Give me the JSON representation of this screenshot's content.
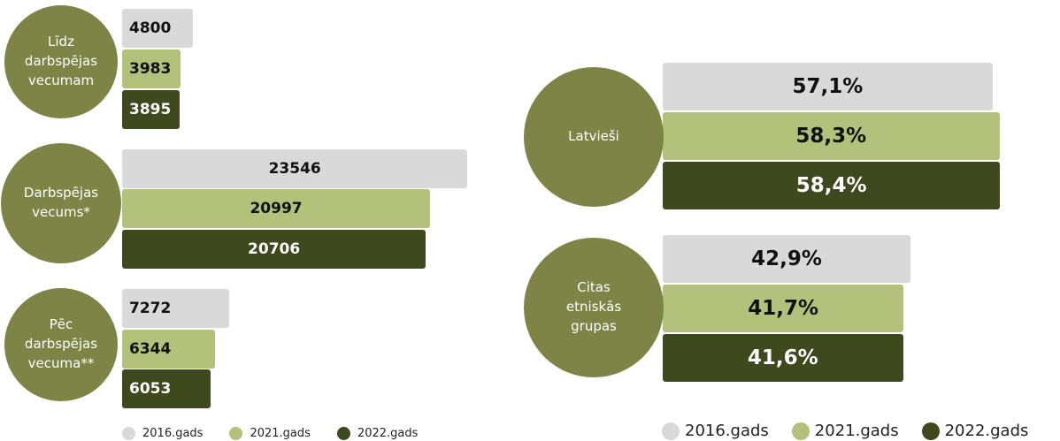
{
  "colors": {
    "circle": "#7d8445",
    "year_2016": "#d9d9d9",
    "year_2021": "#b3c17a",
    "year_2022": "#3e4a1d",
    "text_light_bar": "#111111",
    "text_dark_bar": "#ffffff"
  },
  "chart_data": [
    {
      "type": "bar",
      "orientation": "horizontal",
      "categories": [
        "Līdz darbspējas vecumam",
        "Darbspējas vecums*",
        "Pēc darbspējas vecuma**"
      ],
      "series": [
        {
          "name": "2016.gads",
          "values": [
            4800,
            23546,
            7272
          ]
        },
        {
          "name": "2021.gads",
          "values": [
            3983,
            20997,
            6344
          ]
        },
        {
          "name": "2022.gads",
          "values": [
            3895,
            20706,
            6053
          ]
        }
      ],
      "value_labels": [
        [
          "4800",
          "3983",
          "3895"
        ],
        [
          "23546",
          "20997",
          "20706"
        ],
        [
          "7272",
          "6344",
          "6053"
        ]
      ],
      "xlim": [
        0,
        26000
      ],
      "legend": {
        "position": "bottom",
        "items": [
          {
            "label": "2016.gads",
            "color": "#d9d9d9"
          },
          {
            "label": "2021.gads",
            "color": "#b3c17a"
          },
          {
            "label": "2022.gads",
            "color": "#3e4a1d"
          }
        ]
      }
    },
    {
      "type": "bar",
      "orientation": "horizontal",
      "categories": [
        "Latvieši",
        "Citas etniskās grupas"
      ],
      "series": [
        {
          "name": "2016.gads",
          "values": [
            57.1,
            42.9
          ]
        },
        {
          "name": "2021.gads",
          "values": [
            58.3,
            41.7
          ]
        },
        {
          "name": "2022.gads",
          "values": [
            58.4,
            41.6
          ]
        }
      ],
      "value_labels": [
        [
          "57,1%",
          "58,3%",
          "58,4%"
        ],
        [
          "42,9%",
          "41,7%",
          "41,6%"
        ]
      ],
      "xlim": [
        0,
        72
      ],
      "legend": {
        "position": "bottom",
        "items": [
          {
            "label": "2016.gads",
            "color": "#d9d9d9"
          },
          {
            "label": "2021.gads",
            "color": "#b3c17a"
          },
          {
            "label": "2022.gads",
            "color": "#3e4a1d"
          }
        ]
      }
    }
  ]
}
